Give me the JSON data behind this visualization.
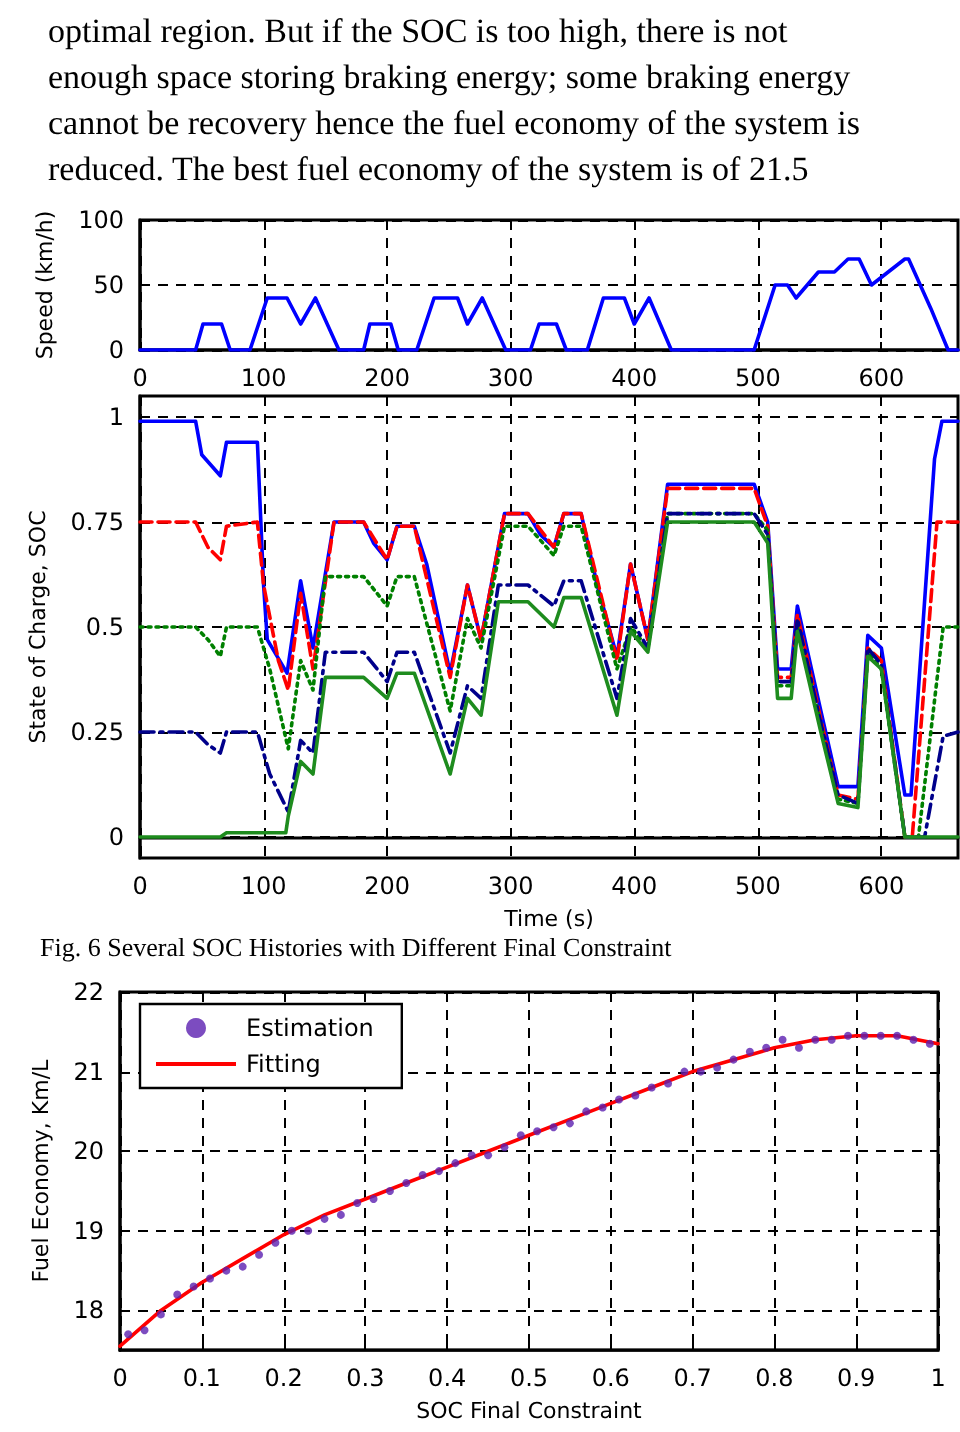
{
  "chart_data": [
    {
      "type": "line",
      "ylabel": "Speed (km/h)",
      "annotations": [
        "optimal region. But if the SOC is too high, there is not",
        "enough space storing braking energy; some braking energy",
        "cannot be recovery hence the fuel economy of the system is",
        "reduced. The best fuel economy of the system is of 21.5"
      ],
      "xlim": [
        0,
        662
      ],
      "ylim": [
        0,
        100
      ],
      "xticks": [
        0,
        100,
        200,
        300,
        400,
        500,
        600
      ],
      "yticks": [
        0,
        50,
        100
      ],
      "grid": true,
      "series": [
        {
          "color": "#0000ff",
          "line_style": "solid",
          "x": [
            0,
            45,
            51,
            66,
            73,
            89,
            103,
            119,
            130,
            142,
            161,
            181,
            186,
            203,
            209,
            224,
            238,
            257,
            265,
            277,
            296,
            316,
            323,
            337,
            345,
            362,
            375,
            392,
            400,
            412,
            430,
            497,
            514,
            524,
            531,
            549,
            562,
            573,
            582,
            592,
            619,
            622,
            640,
            654,
            662
          ],
          "values": [
            0,
            0,
            20,
            20,
            0,
            0,
            40,
            40,
            20,
            40,
            0,
            0,
            20,
            20,
            0,
            0,
            40,
            40,
            20,
            40,
            0,
            0,
            20,
            20,
            0,
            0,
            40,
            40,
            20,
            40,
            0,
            0,
            50,
            50,
            40,
            60,
            60,
            70,
            70,
            50,
            70,
            70,
            32,
            0,
            0
          ]
        }
      ]
    },
    {
      "type": "line",
      "xlabel": "Time (s)",
      "ylabel": "State of Charge, SOC",
      "annotations": [
        "Fig. 6 Several SOC Histories with Different Final Constraint"
      ],
      "xlim": [
        0,
        662
      ],
      "ylim": [
        -0.05,
        1.05
      ],
      "xticks": [
        0,
        100,
        200,
        300,
        400,
        500,
        600
      ],
      "yticks": [
        0,
        0.25,
        0.5,
        0.75,
        1
      ],
      "grid": true,
      "series": [
        {
          "color": "#0000ff",
          "line_style": "solid",
          "x": [
            0,
            45,
            50,
            65,
            70,
            95,
            100,
            103,
            119,
            130,
            140,
            157,
            181,
            189,
            200,
            208,
            222,
            232,
            251,
            265,
            276,
            295,
            314,
            324,
            335,
            343,
            357,
            370,
            386,
            397,
            411,
            427,
            497,
            508,
            516,
            527,
            532,
            551,
            565,
            581,
            589,
            600,
            619,
            624,
            643,
            649,
            662
          ],
          "values": [
            0.99,
            0.99,
            0.91,
            0.86,
            0.94,
            0.94,
            0.6,
            0.47,
            0.39,
            0.61,
            0.45,
            0.75,
            0.75,
            0.7,
            0.66,
            0.74,
            0.74,
            0.65,
            0.39,
            0.6,
            0.47,
            0.77,
            0.77,
            0.72,
            0.69,
            0.77,
            0.77,
            0.6,
            0.43,
            0.65,
            0.47,
            0.84,
            0.84,
            0.75,
            0.4,
            0.4,
            0.55,
            0.3,
            0.12,
            0.12,
            0.48,
            0.45,
            0.1,
            0.1,
            0.9,
            0.99,
            0.99
          ]
        },
        {
          "color": "#ff0000",
          "line_style": "dashed",
          "x": [
            0,
            45,
            55,
            65,
            70,
            95,
            100,
            112,
            120,
            130,
            140,
            157,
            181,
            200,
            208,
            222,
            251,
            265,
            276,
            295,
            314,
            335,
            343,
            357,
            386,
            397,
            411,
            427,
            497,
            508,
            516,
            527,
            532,
            551,
            565,
            581,
            589,
            600,
            619,
            625,
            645,
            662
          ],
          "values": [
            0.75,
            0.75,
            0.69,
            0.66,
            0.74,
            0.75,
            0.6,
            0.42,
            0.35,
            0.58,
            0.4,
            0.75,
            0.75,
            0.66,
            0.74,
            0.74,
            0.38,
            0.6,
            0.47,
            0.77,
            0.77,
            0.69,
            0.77,
            0.77,
            0.42,
            0.65,
            0.47,
            0.83,
            0.83,
            0.74,
            0.38,
            0.38,
            0.53,
            0.28,
            0.1,
            0.09,
            0.45,
            0.42,
            0,
            0,
            0.75,
            0.75
          ]
        },
        {
          "color": "#008000",
          "line_style": "dotted",
          "x": [
            0,
            45,
            55,
            65,
            70,
            95,
            105,
            120,
            130,
            140,
            150,
            181,
            200,
            208,
            222,
            251,
            265,
            276,
            295,
            314,
            335,
            343,
            357,
            386,
            397,
            411,
            427,
            497,
            508,
            516,
            527,
            532,
            551,
            565,
            581,
            589,
            600,
            619,
            630,
            650,
            662
          ],
          "values": [
            0.5,
            0.5,
            0.47,
            0.43,
            0.5,
            0.5,
            0.4,
            0.21,
            0.42,
            0.35,
            0.62,
            0.62,
            0.55,
            0.62,
            0.62,
            0.3,
            0.52,
            0.45,
            0.74,
            0.74,
            0.67,
            0.74,
            0.74,
            0.4,
            0.5,
            0.45,
            0.77,
            0.77,
            0.73,
            0.36,
            0.36,
            0.5,
            0.27,
            0.09,
            0.08,
            0.44,
            0.4,
            0,
            0,
            0.5,
            0.5
          ]
        },
        {
          "color": "#00008b",
          "line_style": "dashdot",
          "x": [
            0,
            45,
            55,
            65,
            70,
            95,
            105,
            120,
            130,
            140,
            150,
            181,
            200,
            208,
            222,
            251,
            265,
            276,
            290,
            314,
            335,
            343,
            357,
            386,
            397,
            411,
            427,
            497,
            508,
            516,
            527,
            532,
            551,
            565,
            581,
            589,
            600,
            619,
            635,
            650,
            662
          ],
          "values": [
            0.25,
            0.25,
            0.22,
            0.2,
            0.25,
            0.25,
            0.15,
            0.06,
            0.23,
            0.2,
            0.44,
            0.44,
            0.37,
            0.44,
            0.44,
            0.2,
            0.36,
            0.33,
            0.6,
            0.6,
            0.55,
            0.61,
            0.61,
            0.33,
            0.52,
            0.45,
            0.77,
            0.77,
            0.72,
            0.37,
            0.37,
            0.52,
            0.27,
            0.1,
            0.08,
            0.45,
            0.41,
            0,
            0,
            0.24,
            0.25
          ]
        },
        {
          "color": "#1e8c1e",
          "line_style": "solid",
          "x": [
            0,
            65,
            70,
            118,
            120,
            130,
            140,
            150,
            181,
            200,
            208,
            222,
            251,
            265,
            276,
            290,
            314,
            335,
            343,
            357,
            386,
            397,
            411,
            427,
            497,
            508,
            516,
            527,
            532,
            551,
            565,
            581,
            589,
            600,
            619,
            662
          ],
          "values": [
            0,
            0,
            0.01,
            0.01,
            0.05,
            0.18,
            0.15,
            0.38,
            0.38,
            0.33,
            0.39,
            0.39,
            0.15,
            0.33,
            0.29,
            0.56,
            0.56,
            0.5,
            0.57,
            0.57,
            0.29,
            0.49,
            0.44,
            0.75,
            0.75,
            0.7,
            0.33,
            0.33,
            0.49,
            0.25,
            0.08,
            0.07,
            0.43,
            0.4,
            0,
            0
          ]
        }
      ]
    },
    {
      "type": "line",
      "xlabel": "SOC Final Constraint",
      "ylabel": "Fuel Economy, Km/L",
      "xlim": [
        0,
        1
      ],
      "ylim": [
        17.5,
        22
      ],
      "xticks": [
        0,
        0.1,
        0.2,
        0.3,
        0.4,
        0.5,
        0.6,
        0.7,
        0.8,
        0.9,
        1
      ],
      "yticks": [
        18,
        19,
        20,
        21,
        22
      ],
      "grid": true,
      "legend": "top left",
      "series": [
        {
          "name": "Estimation",
          "type": "scatter",
          "marker": "circle",
          "color": "#5b1fb0",
          "x": [
            0.01,
            0.03,
            0.05,
            0.07,
            0.09,
            0.11,
            0.13,
            0.15,
            0.17,
            0.19,
            0.21,
            0.23,
            0.25,
            0.27,
            0.29,
            0.31,
            0.33,
            0.35,
            0.37,
            0.39,
            0.41,
            0.43,
            0.45,
            0.47,
            0.49,
            0.51,
            0.53,
            0.55,
            0.57,
            0.59,
            0.61,
            0.63,
            0.65,
            0.67,
            0.69,
            0.71,
            0.73,
            0.75,
            0.77,
            0.79,
            0.81,
            0.83,
            0.85,
            0.87,
            0.89,
            0.91,
            0.93,
            0.95,
            0.97,
            0.99
          ],
          "values": [
            17.7,
            17.75,
            17.95,
            18.2,
            18.3,
            18.4,
            18.5,
            18.55,
            18.7,
            18.85,
            19.0,
            19.0,
            19.15,
            19.2,
            19.35,
            19.4,
            19.5,
            19.6,
            19.7,
            19.75,
            19.85,
            19.95,
            19.95,
            20.05,
            20.2,
            20.25,
            20.3,
            20.35,
            20.5,
            20.55,
            20.65,
            20.7,
            20.8,
            20.85,
            21.0,
            21.0,
            21.05,
            21.15,
            21.25,
            21.3,
            21.4,
            21.3,
            21.4,
            21.4,
            21.45,
            21.45,
            21.45,
            21.45,
            21.4,
            21.35
          ]
        },
        {
          "name": "Fitting",
          "line_style": "solid",
          "color": "#ff0000",
          "x": [
            0,
            0.05,
            0.1,
            0.15,
            0.2,
            0.25,
            0.3,
            0.35,
            0.4,
            0.45,
            0.5,
            0.55,
            0.6,
            0.65,
            0.7,
            0.75,
            0.8,
            0.85,
            0.9,
            0.95,
            1
          ],
          "values": [
            17.55,
            18.0,
            18.35,
            18.65,
            18.95,
            19.2,
            19.4,
            19.6,
            19.8,
            20.0,
            20.2,
            20.4,
            20.6,
            20.8,
            21.0,
            21.15,
            21.3,
            21.4,
            21.45,
            21.45,
            21.35
          ]
        }
      ]
    }
  ]
}
